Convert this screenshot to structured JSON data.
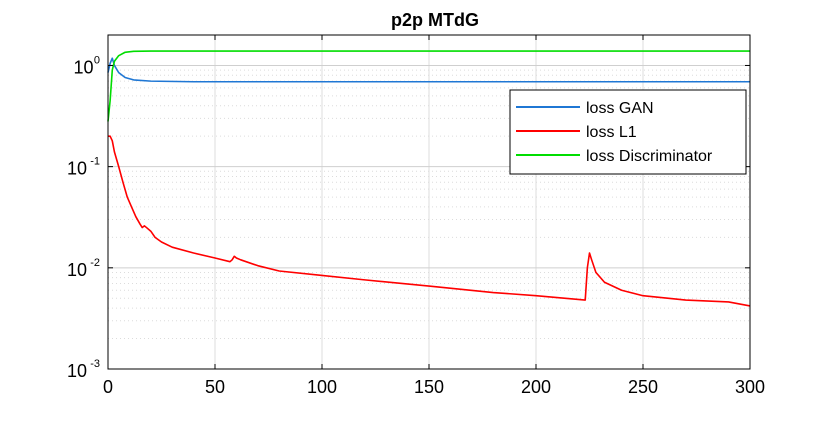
{
  "chart_data": {
    "type": "line",
    "title": "p2p MTdG",
    "xlabel": "",
    "ylabel": "",
    "yscale": "log",
    "xlim": [
      0,
      300
    ],
    "ylim": [
      0.001,
      2
    ],
    "grid": true,
    "legend_position": "top-right",
    "x_ticks": [
      {
        "value": 0,
        "label": "0"
      },
      {
        "value": 50,
        "label": "50"
      },
      {
        "value": 100,
        "label": "100"
      },
      {
        "value": 150,
        "label": "150"
      },
      {
        "value": 200,
        "label": "200"
      },
      {
        "value": 250,
        "label": "250"
      },
      {
        "value": 300,
        "label": "300"
      }
    ],
    "y_ticks": [
      {
        "value": 0.001,
        "base": "10",
        "exponent": "-3"
      },
      {
        "value": 0.01,
        "base": "10",
        "exponent": "-2"
      },
      {
        "value": 0.1,
        "base": "10",
        "exponent": "-1"
      },
      {
        "value": 1,
        "base": "10",
        "exponent": "0"
      }
    ],
    "series": [
      {
        "name": "loss GAN",
        "color": "#1f77d4",
        "points": [
          [
            0,
            0.85
          ],
          [
            1,
            1.05
          ],
          [
            2,
            1.18
          ],
          [
            3,
            1.0
          ],
          [
            5,
            0.85
          ],
          [
            8,
            0.76
          ],
          [
            12,
            0.72
          ],
          [
            20,
            0.7
          ],
          [
            40,
            0.69
          ],
          [
            100,
            0.69
          ],
          [
            200,
            0.69
          ],
          [
            300,
            0.69
          ]
        ]
      },
      {
        "name": "loss L1",
        "color": "#ff0000",
        "points": [
          [
            0,
            0.2
          ],
          [
            1,
            0.2
          ],
          [
            2,
            0.18
          ],
          [
            3,
            0.14
          ],
          [
            5,
            0.1
          ],
          [
            7,
            0.07
          ],
          [
            9,
            0.05
          ],
          [
            11,
            0.04
          ],
          [
            13,
            0.032
          ],
          [
            15,
            0.027
          ],
          [
            16,
            0.025
          ],
          [
            17,
            0.026
          ],
          [
            18,
            0.025
          ],
          [
            20,
            0.023
          ],
          [
            22,
            0.02
          ],
          [
            25,
            0.018
          ],
          [
            30,
            0.016
          ],
          [
            40,
            0.014
          ],
          [
            50,
            0.0125
          ],
          [
            57,
            0.0115
          ],
          [
            58,
            0.012
          ],
          [
            59,
            0.013
          ],
          [
            60,
            0.0125
          ],
          [
            62,
            0.012
          ],
          [
            70,
            0.0105
          ],
          [
            80,
            0.0093
          ],
          [
            100,
            0.0084
          ],
          [
            120,
            0.0076
          ],
          [
            150,
            0.0066
          ],
          [
            180,
            0.0057
          ],
          [
            200,
            0.0053
          ],
          [
            223,
            0.0048
          ],
          [
            224,
            0.01
          ],
          [
            225,
            0.014
          ],
          [
            226,
            0.012
          ],
          [
            228,
            0.009
          ],
          [
            232,
            0.0072
          ],
          [
            240,
            0.006
          ],
          [
            250,
            0.0053
          ],
          [
            270,
            0.0048
          ],
          [
            290,
            0.0046
          ],
          [
            300,
            0.0042
          ]
        ]
      },
      {
        "name": "loss Discriminator",
        "color": "#00dd00",
        "points": [
          [
            0,
            0.28
          ],
          [
            1,
            0.45
          ],
          [
            2,
            0.9
          ],
          [
            3,
            1.1
          ],
          [
            5,
            1.25
          ],
          [
            8,
            1.35
          ],
          [
            12,
            1.38
          ],
          [
            20,
            1.386
          ],
          [
            100,
            1.386
          ],
          [
            200,
            1.386
          ],
          [
            300,
            1.386
          ]
        ]
      }
    ]
  }
}
